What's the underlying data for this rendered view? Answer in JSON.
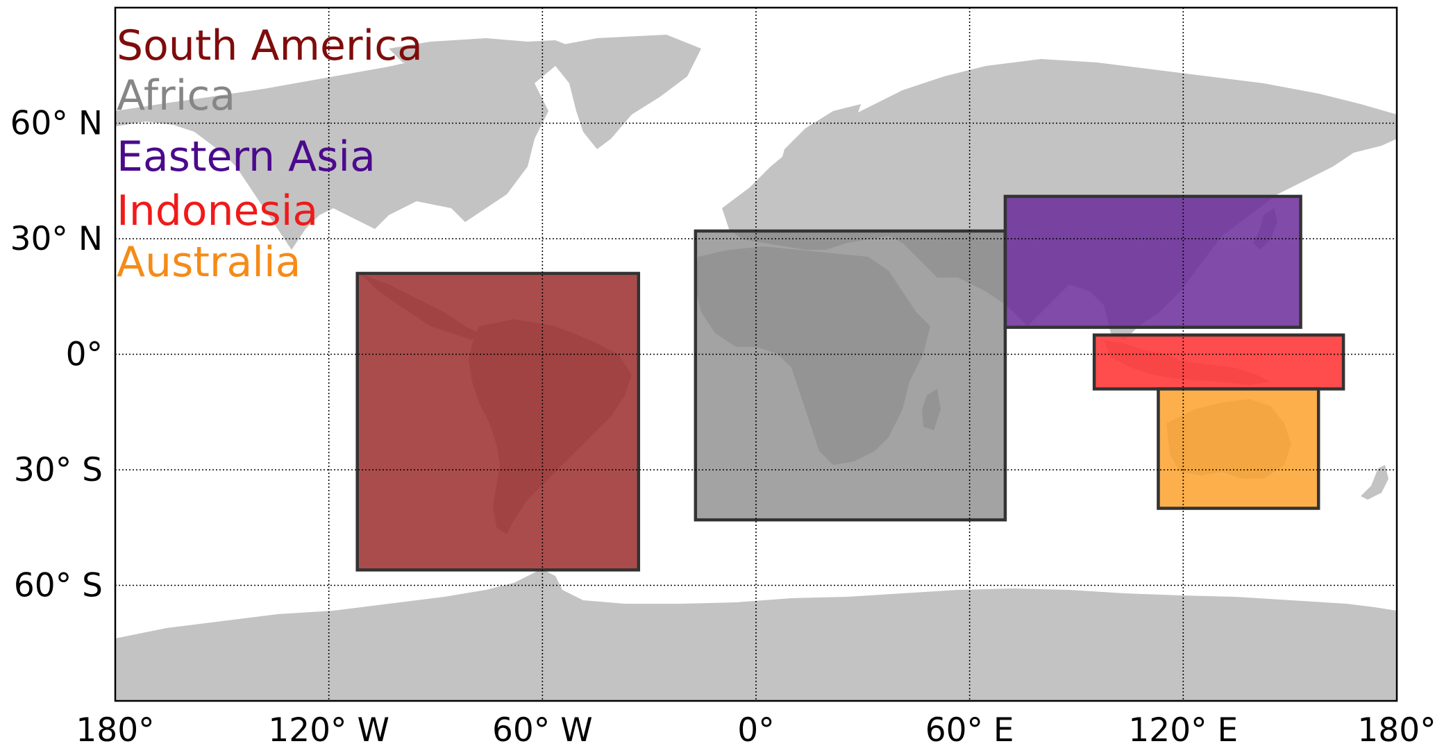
{
  "map": {
    "projection": "equirectangular",
    "lon_range": [
      -180,
      180
    ],
    "lat_range": [
      -90,
      90
    ],
    "land_color": "#c3c3c3",
    "gridlines": true,
    "lon_ticks": [
      {
        "value": -180,
        "label": "180°"
      },
      {
        "value": -120,
        "label": "120° W"
      },
      {
        "value": -60,
        "label": "60° W"
      },
      {
        "value": 0,
        "label": "0°"
      },
      {
        "value": 60,
        "label": "60° E"
      },
      {
        "value": 120,
        "label": "120° E"
      },
      {
        "value": 180,
        "label": "180°"
      }
    ],
    "lat_ticks": [
      {
        "value": 60,
        "label": "60° N"
      },
      {
        "value": 30,
        "label": "30° N"
      },
      {
        "value": 0,
        "label": "0°"
      },
      {
        "value": -30,
        "label": "30° S"
      },
      {
        "value": -60,
        "label": "60° S"
      }
    ],
    "legend_placement": "top-left",
    "regions": [
      {
        "name": "South America",
        "label_color": "#7f0c0c",
        "fill": "#9b2d2d",
        "fill_opacity": 0.85,
        "lon": [
          -112,
          -33
        ],
        "lat": [
          -56,
          21
        ]
      },
      {
        "name": "Africa",
        "label_color": "#868686",
        "fill": "#848484",
        "fill_opacity": 0.75,
        "lon": [
          -17,
          70
        ],
        "lat": [
          -43,
          32
        ]
      },
      {
        "name": "Eastern Asia",
        "label_color": "#4b0a8c",
        "fill": "#6a2c9a",
        "fill_opacity": 0.85,
        "lon": [
          70,
          153
        ],
        "lat": [
          7,
          41
        ]
      },
      {
        "name": "Indonesia",
        "label_color": "#f01a1a",
        "fill": "#ff3333",
        "fill_opacity": 0.88,
        "lon": [
          95,
          165
        ],
        "lat": [
          -9,
          5
        ]
      },
      {
        "name": "Australia",
        "label_color": "#f58b18",
        "fill": "#fca12a",
        "fill_opacity": 0.85,
        "lon": [
          113,
          158
        ],
        "lat": [
          -40,
          -9
        ]
      }
    ]
  }
}
